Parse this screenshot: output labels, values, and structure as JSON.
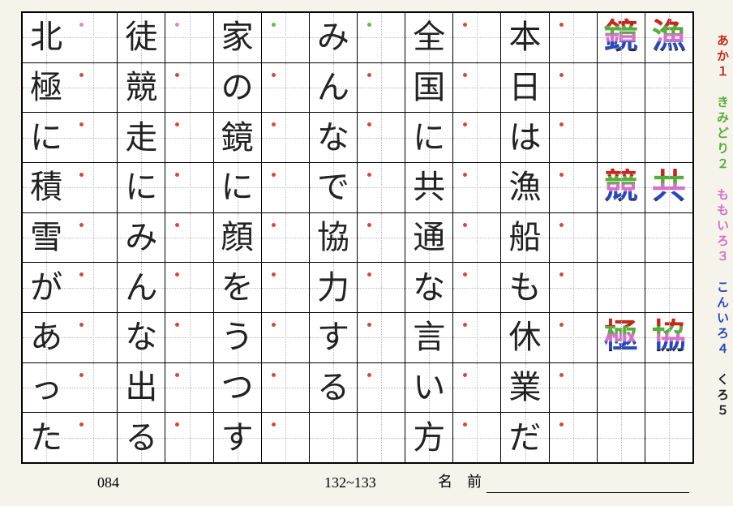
{
  "colors": {
    "red": "#be2a1f",
    "green": "#5aab3e",
    "pink": "#d272c8",
    "navy": "#2848b7",
    "black": "#222222",
    "reddot": "#d24a3a",
    "greendot": "#6db356",
    "pinkdot": "#d889d0",
    "navydot": "#4a62c3"
  },
  "legend": {
    "items": [
      {
        "text": "あか１",
        "color": "#be2a1f"
      },
      {
        "text": "きみどり２",
        "color": "#5aab3e"
      },
      {
        "text": "ももいろ３",
        "color": "#d272c8"
      },
      {
        "text": "こんいろ４",
        "color": "#2848b7"
      },
      {
        "text": "くろ５",
        "color": "#222222"
      }
    ]
  },
  "footer": {
    "num": "084",
    "range": "132~133",
    "name_label": "名　前"
  },
  "columns": [
    {
      "id": "col-kanji-a",
      "cells": [
        {
          "char": "漁",
          "stroke_colors": [
            "#be2a1f",
            "#5aab3e",
            "#d272c8",
            "#2848b7",
            "#222222"
          ]
        },
        {
          "char": ""
        },
        {
          "char": ""
        },
        {
          "char": "共",
          "stroke_colors": [
            "#be2a1f",
            "#5aab3e",
            "#d272c8",
            "#2848b7",
            "#222222"
          ]
        },
        {
          "char": ""
        },
        {
          "char": ""
        },
        {
          "char": "協",
          "stroke_colors": [
            "#be2a1f",
            "#5aab3e",
            "#d272c8",
            "#2848b7",
            "#222222"
          ]
        },
        {
          "char": ""
        },
        {
          "char": ""
        }
      ]
    },
    {
      "id": "col-kanji-b",
      "cells": [
        {
          "char": "鏡",
          "stroke_colors": [
            "#be2a1f",
            "#5aab3e",
            "#d272c8",
            "#2848b7",
            "#222222"
          ]
        },
        {
          "char": ""
        },
        {
          "char": ""
        },
        {
          "char": "競",
          "stroke_colors": [
            "#be2a1f",
            "#5aab3e",
            "#d272c8",
            "#2848b7",
            "#222222"
          ]
        },
        {
          "char": ""
        },
        {
          "char": ""
        },
        {
          "char": "極",
          "stroke_colors": [
            "#be2a1f",
            "#5aab3e",
            "#d272c8",
            "#2848b7",
            "#222222"
          ]
        },
        {
          "char": ""
        },
        {
          "char": ""
        }
      ]
    },
    {
      "id": "col-blank-1",
      "cells": [
        {
          "dot": "reddot"
        },
        {
          "dot": "reddot"
        },
        {
          "dot": "reddot"
        },
        {
          "dot": "reddot"
        },
        {
          "dot": "reddot"
        },
        {
          "dot": "reddot"
        },
        {
          "dot": "reddot"
        },
        {
          "dot": "reddot"
        },
        {
          "dot": "reddot"
        }
      ]
    },
    {
      "id": "col-sentence-1",
      "cells": [
        {
          "char": "本"
        },
        {
          "char": "日"
        },
        {
          "char": "は"
        },
        {
          "char": "漁"
        },
        {
          "char": "船"
        },
        {
          "char": "も"
        },
        {
          "char": "休"
        },
        {
          "char": "業"
        },
        {
          "char": "だ"
        }
      ]
    },
    {
      "id": "col-blank-2",
      "cells": [
        {
          "dot": "reddot"
        },
        {
          "dot": "reddot"
        },
        {
          "dot": "reddot"
        },
        {
          "dot": "reddot"
        },
        {
          "dot": "reddot"
        },
        {
          "dot": "reddot"
        },
        {
          "dot": "reddot"
        },
        {
          "dot": "reddot"
        },
        {
          "dot": "reddot"
        }
      ]
    },
    {
      "id": "col-sentence-2",
      "cells": [
        {
          "char": "全"
        },
        {
          "char": "国"
        },
        {
          "char": "に"
        },
        {
          "char": "共"
        },
        {
          "char": "通"
        },
        {
          "char": "な"
        },
        {
          "char": "言"
        },
        {
          "char": "い"
        },
        {
          "char": "方"
        }
      ]
    },
    {
      "id": "col-blank-3",
      "cells": [
        {
          "dot": "greendot"
        },
        {
          "dot": "reddot"
        },
        {
          "dot": "reddot"
        },
        {
          "dot": "reddot"
        },
        {
          "dot": "reddot"
        },
        {
          "dot": "reddot"
        },
        {
          "dot": "reddot"
        },
        {
          "dot": "reddot"
        },
        {}
      ]
    },
    {
      "id": "col-sentence-3",
      "cells": [
        {
          "char": "み"
        },
        {
          "char": "ん"
        },
        {
          "char": "な"
        },
        {
          "char": "で"
        },
        {
          "char": "協"
        },
        {
          "char": "力"
        },
        {
          "char": "す"
        },
        {
          "char": "る"
        },
        {
          "char": ""
        }
      ]
    },
    {
      "id": "col-blank-4",
      "cells": [
        {
          "dot": "greendot"
        },
        {
          "dot": "reddot"
        },
        {
          "dot": "reddot"
        },
        {
          "dot": "reddot"
        },
        {
          "dot": "reddot"
        },
        {
          "dot": "reddot"
        },
        {
          "dot": "reddot"
        },
        {
          "dot": "reddot"
        },
        {
          "dot": "reddot"
        }
      ]
    },
    {
      "id": "col-sentence-4",
      "cells": [
        {
          "char": "家"
        },
        {
          "char": "の"
        },
        {
          "char": "鏡"
        },
        {
          "char": "に"
        },
        {
          "char": "顔"
        },
        {
          "char": "を"
        },
        {
          "char": "う"
        },
        {
          "char": "つ"
        },
        {
          "char": "す"
        }
      ]
    },
    {
      "id": "col-blank-5",
      "cells": [
        {
          "dot": "pinkdot"
        },
        {
          "dot": "reddot"
        },
        {
          "dot": "reddot"
        },
        {
          "dot": "reddot"
        },
        {
          "dot": "reddot"
        },
        {
          "dot": "reddot"
        },
        {
          "dot": "reddot"
        },
        {
          "dot": "reddot"
        },
        {
          "dot": "reddot"
        }
      ]
    },
    {
      "id": "col-sentence-5",
      "cells": [
        {
          "char": "徒"
        },
        {
          "char": "競"
        },
        {
          "char": "走"
        },
        {
          "char": "に"
        },
        {
          "char": "み"
        },
        {
          "char": "ん"
        },
        {
          "char": "な"
        },
        {
          "char": "出"
        },
        {
          "char": "る"
        }
      ]
    },
    {
      "id": "col-blank-6",
      "cells": [
        {
          "dot": "pinkdot"
        },
        {
          "dot": "reddot"
        },
        {
          "dot": "reddot"
        },
        {
          "dot": "reddot"
        },
        {
          "dot": "reddot"
        },
        {
          "dot": "reddot"
        },
        {
          "dot": "reddot"
        },
        {
          "dot": "reddot"
        },
        {
          "dot": "reddot"
        }
      ]
    },
    {
      "id": "col-sentence-6",
      "cells": [
        {
          "char": "北"
        },
        {
          "char": "極"
        },
        {
          "char": "に"
        },
        {
          "char": "積"
        },
        {
          "char": "雪"
        },
        {
          "char": "が"
        },
        {
          "char": "あ"
        },
        {
          "char": "っ"
        },
        {
          "char": "た"
        }
      ]
    }
  ]
}
